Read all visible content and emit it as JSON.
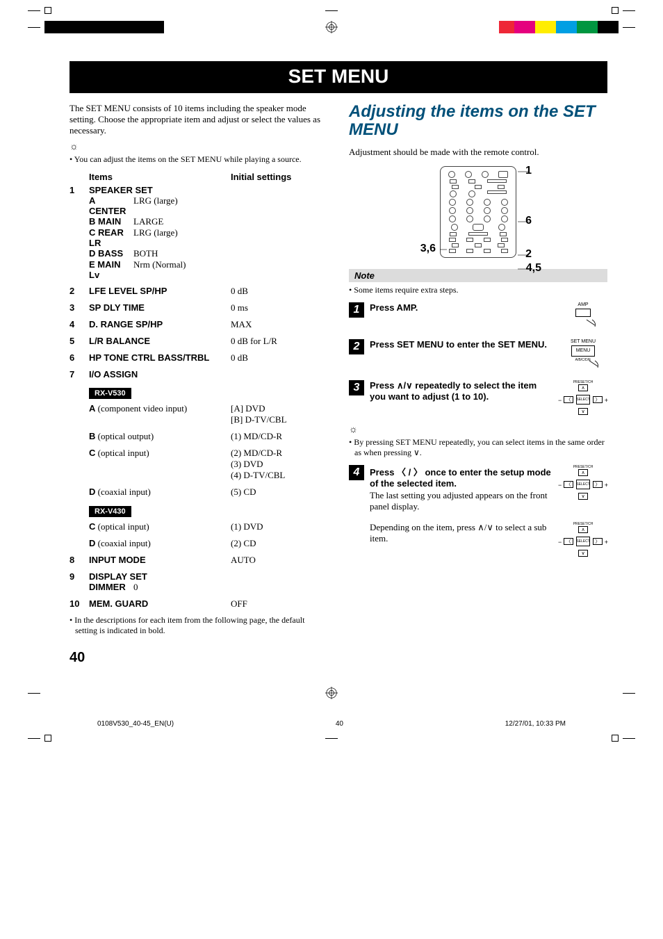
{
  "print_marks": {
    "left_bar_colors": [
      "#000000",
      "#000000",
      "#000000",
      "#000000",
      "#000000",
      "#000000"
    ],
    "right_bar_colors": [
      "#ee2737",
      "#e5007e",
      "#ffed00",
      "#009fe3",
      "#009640",
      "#000000"
    ]
  },
  "title": "SET MENU",
  "left": {
    "intro": "The SET MENU consists of 10 items including the speaker mode setting. Choose the appropriate item and adjust or select the values as necessary.",
    "bullet1": "• You can adjust the items on the SET MENU while playing a source.",
    "head_items": "Items",
    "head_initial": "Initial settings",
    "rows": [
      {
        "n": "1",
        "label": "SPEAKER SET",
        "sub": [
          {
            "l": "A CENTER",
            "r": "LRG (large)"
          },
          {
            "l": "B MAIN",
            "r": "LARGE"
          },
          {
            "l": "C REAR LR",
            "r": "LRG (large)"
          },
          {
            "l": "D BASS",
            "r": "BOTH"
          },
          {
            "l": "E MAIN Lv",
            "r": "Nrm (Normal)"
          }
        ]
      },
      {
        "n": "2",
        "label": "LFE LEVEL SP/HP",
        "r": "0 dB"
      },
      {
        "n": "3",
        "label": "SP DLY TIME",
        "r": "0 ms"
      },
      {
        "n": "4",
        "label": "D. RANGE SP/HP",
        "r": "MAX"
      },
      {
        "n": "5",
        "label": "L/R BALANCE",
        "r": "0 dB for L/R"
      },
      {
        "n": "6",
        "label": "HP TONE CTRL BASS/TRBL",
        "r": "0 dB"
      },
      {
        "n": "7",
        "label": "I/O ASSIGN",
        "r": ""
      }
    ],
    "model1": "RX-V530",
    "io1": [
      {
        "l": "A",
        "suffix": " (component video input)",
        "r": "[A] DVD\n[B] D-TV/CBL"
      },
      {
        "l": "B",
        "suffix": " (optical output)",
        "r": "(1) MD/CD-R"
      },
      {
        "l": "C",
        "suffix": " (optical input)",
        "r": "(2) MD/CD-R\n(3) DVD\n(4) D-TV/CBL"
      },
      {
        "l": "D",
        "suffix": " (coaxial input)",
        "r": "(5) CD"
      }
    ],
    "model2": "RX-V430",
    "io2": [
      {
        "l": "C",
        "suffix": " (optical input)",
        "r": "(1) DVD"
      },
      {
        "l": "D",
        "suffix": " (coaxial input)",
        "r": "(2) CD"
      }
    ],
    "rows2": [
      {
        "n": "8",
        "label": "INPUT MODE",
        "r": "AUTO"
      },
      {
        "n": "9",
        "label": "DISPLAY SET",
        "sub": [
          {
            "l": "DIMMER",
            "r": "0"
          }
        ]
      },
      {
        "n": "10",
        "label": "MEM. GUARD",
        "r": "OFF"
      }
    ],
    "footnote": "• In the descriptions for each item from the following page, the default setting is indicated in bold."
  },
  "right": {
    "heading": "Adjusting the items on the SET MENU",
    "intro": "Adjustment should be made with the remote control.",
    "callouts": {
      "c1": "1",
      "c6": "6",
      "c36": "3,6",
      "c2": "2",
      "c45": "4,5"
    },
    "note_head": "Note",
    "note_bullet": "• Some items require extra steps.",
    "step1": {
      "title": "Press AMP.",
      "amp_label": "AMP"
    },
    "step2": {
      "title": "Press SET MENU to enter the SET MENU.",
      "btn_top": "SET MENU",
      "btn": "MENU",
      "btn_bot": "A/B/C/D/E"
    },
    "step3": {
      "title": "Press ∧/∨ repeatedly to select the item you want to adjust (1 to 10).",
      "preset": "PRESET/CH",
      "select": "SELECT"
    },
    "tip": "• By pressing SET MENU repeatedly, you can select items in the same order as when pressing ∨.",
    "step4": {
      "title": "Press 〈 / 〉 once to enter the setup mode of the selected item.",
      "body": "The last setting you adjusted appears on the front panel display.",
      "body2": "Depending on the item, press ∧/∨ to select a sub item.",
      "preset": "PRESET/CH",
      "select": "SELECT"
    }
  },
  "page_number": "40",
  "footer": {
    "file": "0108V530_40-45_EN(U)",
    "page": "40",
    "date": "12/27/01, 10:33 PM"
  }
}
